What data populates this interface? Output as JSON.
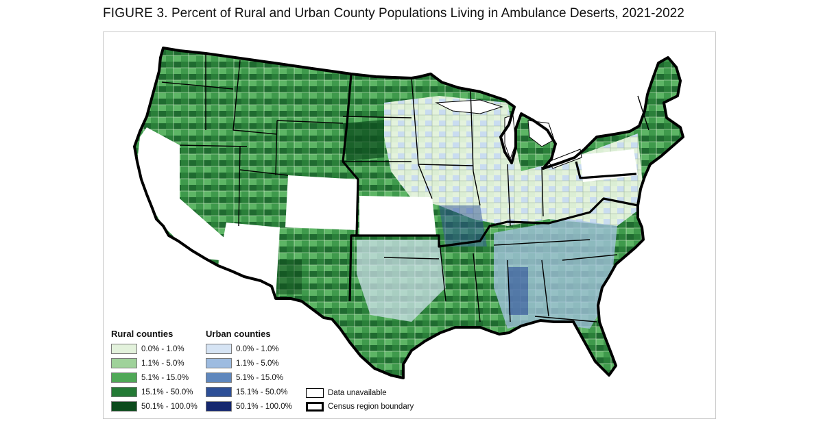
{
  "figure": {
    "label": "FIGURE 3.",
    "title": "Percent of Rural and Urban County Populations Living in Ambulance Deserts, 2021-2022"
  },
  "legend": {
    "rural": {
      "heading": "Rural counties",
      "classes": [
        {
          "label": "0.0% - 1.0%",
          "color": "#e3f2dc"
        },
        {
          "label": "1.1% - 5.0%",
          "color": "#9fd29a"
        },
        {
          "label": "5.1% - 15.0%",
          "color": "#4fa857"
        },
        {
          "label": "15.1% - 50.0%",
          "color": "#237a35"
        },
        {
          "label": "50.1% - 100.0%",
          "color": "#0c4a1c"
        }
      ]
    },
    "urban": {
      "heading": "Urban counties",
      "classes": [
        {
          "label": "0.0% - 1.0%",
          "color": "#d6e4f4"
        },
        {
          "label": "1.1% - 5.0%",
          "color": "#9dbbe0"
        },
        {
          "label": "5.1% - 15.0%",
          "color": "#5f87bd"
        },
        {
          "label": "15.1% - 50.0%",
          "color": "#2d4f97"
        },
        {
          "label": "50.1% - 100.0%",
          "color": "#15276e"
        }
      ]
    },
    "data_unavailable": {
      "label": "Data unavailable",
      "color": "#ffffff"
    },
    "region_boundary": {
      "label": "Census region boundary"
    }
  }
}
